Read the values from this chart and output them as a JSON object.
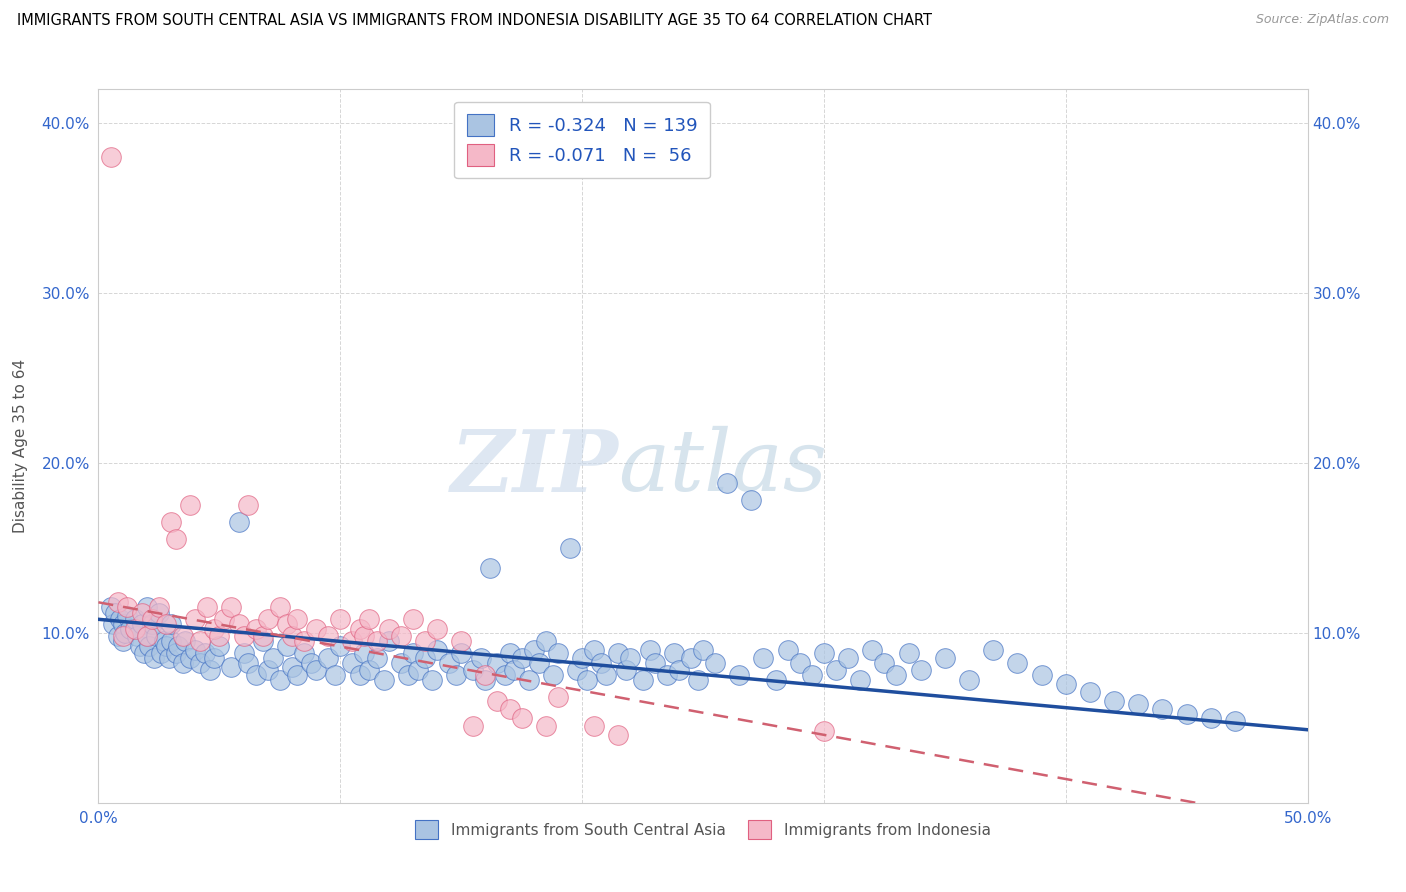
{
  "title": "IMMIGRANTS FROM SOUTH CENTRAL ASIA VS IMMIGRANTS FROM INDONESIA DISABILITY AGE 35 TO 64 CORRELATION CHART",
  "source": "Source: ZipAtlas.com",
  "ylabel": "Disability Age 35 to 64",
  "xlim": [
    0.0,
    0.5
  ],
  "ylim": [
    0.0,
    0.42
  ],
  "xticks": [
    0.0,
    0.1,
    0.2,
    0.3,
    0.4,
    0.5
  ],
  "xticklabels": [
    "0.0%",
    "",
    "",
    "",
    "",
    "50.0%"
  ],
  "yticks": [
    0.0,
    0.1,
    0.2,
    0.3,
    0.4
  ],
  "yticklabels_left": [
    "",
    "10.0%",
    "20.0%",
    "30.0%",
    "40.0%"
  ],
  "yticklabels_right": [
    "",
    "10.0%",
    "20.0%",
    "30.0%",
    "40.0%"
  ],
  "blue_color": "#aac4e2",
  "pink_color": "#f5b8c8",
  "blue_edge_color": "#4472c4",
  "pink_edge_color": "#e06080",
  "blue_line_color": "#1f4e9e",
  "pink_line_color": "#d06070",
  "watermark_zip": "ZIP",
  "watermark_atlas": "atlas",
  "R_blue": -0.324,
  "N_blue": 139,
  "R_pink": -0.071,
  "N_pink": 56,
  "blue_intercept": 0.108,
  "blue_slope": -0.13,
  "pink_intercept": 0.118,
  "pink_slope": -0.26,
  "blue_scatter_x": [
    0.005,
    0.006,
    0.007,
    0.008,
    0.009,
    0.01,
    0.01,
    0.011,
    0.012,
    0.013,
    0.015,
    0.016,
    0.017,
    0.018,
    0.019,
    0.02,
    0.02,
    0.021,
    0.022,
    0.023,
    0.024,
    0.025,
    0.026,
    0.027,
    0.028,
    0.029,
    0.03,
    0.03,
    0.032,
    0.033,
    0.035,
    0.036,
    0.038,
    0.04,
    0.042,
    0.044,
    0.046,
    0.048,
    0.05,
    0.055,
    0.058,
    0.06,
    0.062,
    0.065,
    0.068,
    0.07,
    0.072,
    0.075,
    0.078,
    0.08,
    0.082,
    0.085,
    0.088,
    0.09,
    0.095,
    0.098,
    0.1,
    0.105,
    0.108,
    0.11,
    0.112,
    0.115,
    0.118,
    0.12,
    0.125,
    0.128,
    0.13,
    0.132,
    0.135,
    0.138,
    0.14,
    0.145,
    0.148,
    0.15,
    0.155,
    0.158,
    0.16,
    0.162,
    0.165,
    0.168,
    0.17,
    0.172,
    0.175,
    0.178,
    0.18,
    0.182,
    0.185,
    0.188,
    0.19,
    0.195,
    0.198,
    0.2,
    0.202,
    0.205,
    0.208,
    0.21,
    0.215,
    0.218,
    0.22,
    0.225,
    0.228,
    0.23,
    0.235,
    0.238,
    0.24,
    0.245,
    0.248,
    0.25,
    0.255,
    0.26,
    0.265,
    0.27,
    0.275,
    0.28,
    0.285,
    0.29,
    0.295,
    0.3,
    0.305,
    0.31,
    0.315,
    0.32,
    0.325,
    0.33,
    0.335,
    0.34,
    0.35,
    0.36,
    0.37,
    0.38,
    0.39,
    0.4,
    0.41,
    0.42,
    0.43,
    0.44,
    0.45,
    0.46,
    0.47
  ],
  "blue_scatter_y": [
    0.115,
    0.105,
    0.112,
    0.098,
    0.108,
    0.095,
    0.105,
    0.1,
    0.11,
    0.102,
    0.108,
    0.098,
    0.092,
    0.105,
    0.088,
    0.098,
    0.115,
    0.092,
    0.105,
    0.085,
    0.098,
    0.112,
    0.088,
    0.095,
    0.092,
    0.085,
    0.095,
    0.105,
    0.088,
    0.092,
    0.082,
    0.095,
    0.085,
    0.09,
    0.082,
    0.088,
    0.078,
    0.085,
    0.092,
    0.08,
    0.165,
    0.088,
    0.082,
    0.075,
    0.095,
    0.078,
    0.085,
    0.072,
    0.092,
    0.08,
    0.075,
    0.088,
    0.082,
    0.078,
    0.085,
    0.075,
    0.092,
    0.082,
    0.075,
    0.088,
    0.078,
    0.085,
    0.072,
    0.095,
    0.082,
    0.075,
    0.088,
    0.078,
    0.085,
    0.072,
    0.09,
    0.082,
    0.075,
    0.088,
    0.078,
    0.085,
    0.072,
    0.138,
    0.082,
    0.075,
    0.088,
    0.078,
    0.085,
    0.072,
    0.09,
    0.082,
    0.095,
    0.075,
    0.088,
    0.15,
    0.078,
    0.085,
    0.072,
    0.09,
    0.082,
    0.075,
    0.088,
    0.078,
    0.085,
    0.072,
    0.09,
    0.082,
    0.075,
    0.088,
    0.078,
    0.085,
    0.072,
    0.09,
    0.082,
    0.188,
    0.075,
    0.178,
    0.085,
    0.072,
    0.09,
    0.082,
    0.075,
    0.088,
    0.078,
    0.085,
    0.072,
    0.09,
    0.082,
    0.075,
    0.088,
    0.078,
    0.085,
    0.072,
    0.09,
    0.082,
    0.075,
    0.07,
    0.065,
    0.06,
    0.058,
    0.055,
    0.052,
    0.05,
    0.048
  ],
  "pink_scatter_x": [
    0.005,
    0.008,
    0.01,
    0.012,
    0.015,
    0.018,
    0.02,
    0.022,
    0.025,
    0.028,
    0.03,
    0.032,
    0.035,
    0.038,
    0.04,
    0.042,
    0.045,
    0.048,
    0.05,
    0.052,
    0.055,
    0.058,
    0.06,
    0.062,
    0.065,
    0.068,
    0.07,
    0.075,
    0.078,
    0.08,
    0.082,
    0.085,
    0.09,
    0.095,
    0.1,
    0.105,
    0.108,
    0.11,
    0.112,
    0.115,
    0.12,
    0.125,
    0.13,
    0.135,
    0.14,
    0.15,
    0.155,
    0.16,
    0.165,
    0.17,
    0.175,
    0.185,
    0.19,
    0.205,
    0.215,
    0.3
  ],
  "pink_scatter_y": [
    0.38,
    0.118,
    0.098,
    0.115,
    0.102,
    0.112,
    0.098,
    0.108,
    0.115,
    0.105,
    0.165,
    0.155,
    0.098,
    0.175,
    0.108,
    0.095,
    0.115,
    0.102,
    0.098,
    0.108,
    0.115,
    0.105,
    0.098,
    0.175,
    0.102,
    0.098,
    0.108,
    0.115,
    0.105,
    0.098,
    0.108,
    0.095,
    0.102,
    0.098,
    0.108,
    0.095,
    0.102,
    0.098,
    0.108,
    0.095,
    0.102,
    0.098,
    0.108,
    0.095,
    0.102,
    0.095,
    0.045,
    0.075,
    0.06,
    0.055,
    0.05,
    0.045,
    0.062,
    0.045,
    0.04,
    0.042
  ]
}
